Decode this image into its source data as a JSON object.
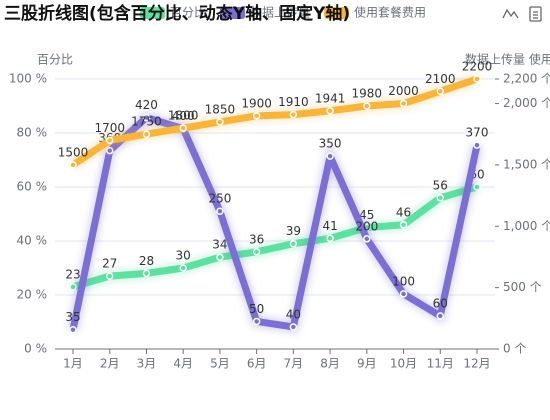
{
  "chart_data": {
    "type": "line",
    "title": "三股折线图(包含百分比、动态Y轴、固定Y轴)",
    "y_label": "百分比",
    "y2_label": "数据上传量 使用",
    "categories": [
      "1月",
      "2月",
      "3月",
      "4月",
      "5月",
      "6月",
      "7月",
      "8月",
      "9月",
      "10月",
      "11月",
      "12月"
    ],
    "ylim": [
      0,
      100
    ],
    "yticks": [
      {
        "value": 0,
        "label": "0 %"
      },
      {
        "value": 20,
        "label": "20 %"
      },
      {
        "value": 40,
        "label": "40 %"
      },
      {
        "value": 60,
        "label": "60 %"
      },
      {
        "value": 80,
        "label": "80 %"
      },
      {
        "value": 100,
        "label": "100 %"
      }
    ],
    "y2lim": [
      0,
      2200
    ],
    "y2ticks": [
      {
        "value": 0,
        "label": "0 个"
      },
      {
        "value": 500,
        "label": "500 个"
      },
      {
        "value": 1000,
        "label": "1,000 个"
      },
      {
        "value": 1500,
        "label": "1,500 个"
      },
      {
        "value": 2000,
        "label": "2,000 个"
      },
      {
        "value": 2200,
        "label": "2,200 个"
      }
    ],
    "y3lim": [
      0,
      490
    ],
    "grid": true,
    "series": [
      {
        "name": "百分比",
        "color": "#5ee0a0",
        "values": [
          23,
          27,
          28,
          30,
          34,
          36,
          39,
          41,
          45,
          46,
          56,
          60
        ]
      },
      {
        "name": "数据上传量",
        "color": "#7b6fd6",
        "axis": "y3",
        "values": [
          35,
          360,
          420,
          400,
          250,
          50,
          40,
          350,
          200,
          100,
          60,
          370
        ]
      },
      {
        "name": "使用套餐费用",
        "color": "#f8b53e",
        "axis": "y2",
        "values": [
          1500,
          1700,
          1750,
          1800,
          1850,
          1900,
          1910,
          1941,
          1980,
          2000,
          2100,
          2200
        ]
      }
    ]
  }
}
